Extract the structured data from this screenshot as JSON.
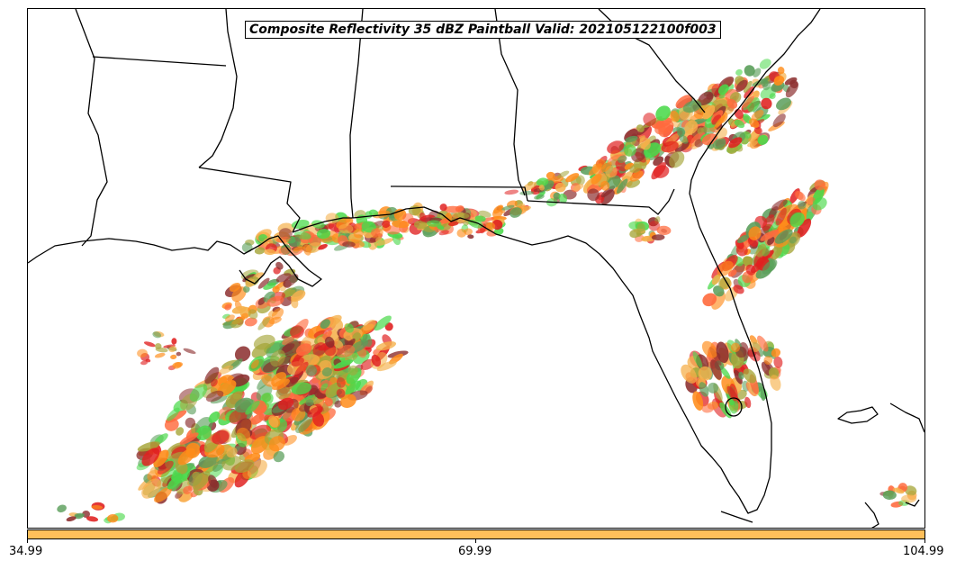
{
  "map": {
    "title": "Composite Reflectivity 35 dBZ Paintball Valid: 202105122100f003",
    "region": "Gulf Coast and Southeast United States",
    "palette": [
      "#4bd94b",
      "#a6a63a",
      "#ff8c1a",
      "#e02020",
      "#8b2d2d",
      "#f5b04a",
      "#5a9e5a",
      "#ff6a3d"
    ],
    "coastline_color": "#000000",
    "background_color": "#ffffff"
  },
  "colorbar": {
    "fill_color": "#ffbf5a",
    "tick_labels": [
      "34.99",
      "69.99",
      "104.99"
    ]
  }
}
